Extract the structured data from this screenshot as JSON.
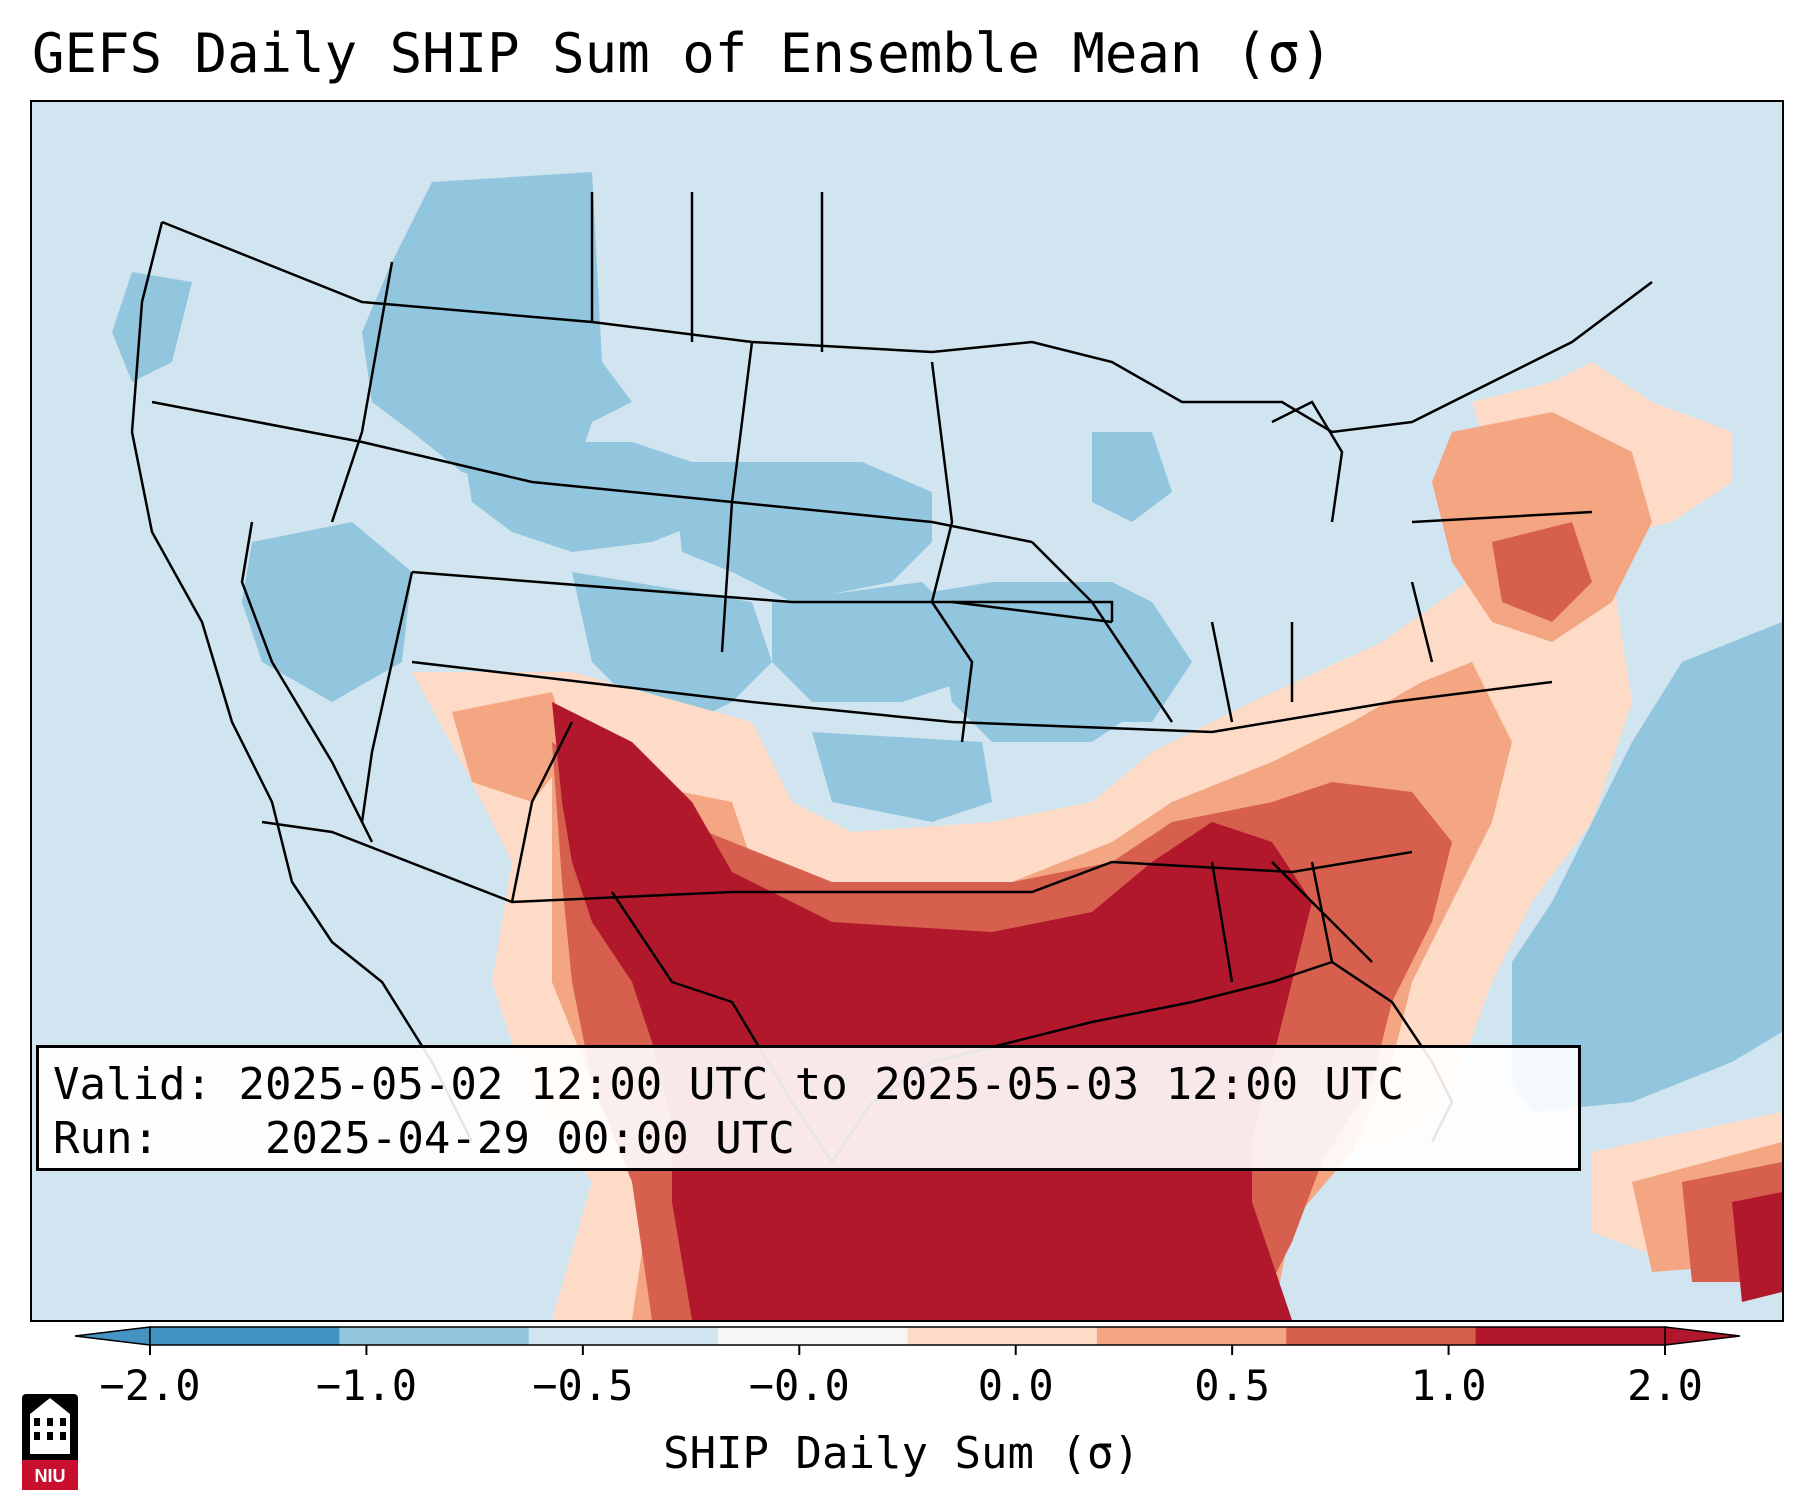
{
  "title": "GEFS Daily SHIP Sum of Ensemble Mean (σ)",
  "info": {
    "valid_label": "Valid:",
    "valid_value": "2025-05-02 12:00 UTC to 2025-05-03 12:00 UTC",
    "run_label": "Run:",
    "run_value": "2025-04-29 00:00 UTC"
  },
  "colorbar": {
    "label": "SHIP Daily Sum (σ)",
    "ticks": [
      "−2.0",
      "−1.0",
      "−0.5",
      "−0.0",
      "0.0",
      "0.5",
      "1.0",
      "2.0"
    ],
    "colors": [
      "#4393c3",
      "#92c5de",
      "#d1e5f0",
      "#f7f7f7",
      "#fddbc7",
      "#f4a582",
      "#d6604d",
      "#b2182b"
    ],
    "extend": "both"
  },
  "logo_text": "NIU",
  "map": {
    "region": "CONUS",
    "legend_colors": {
      "strong_negative": "#4393c3",
      "negative": "#92c5de",
      "weak_negative": "#d1e5f0",
      "weak_positive": "#fddbc7",
      "positive": "#f4a582",
      "strong_positive": "#d6604d",
      "extreme_positive": "#b2182b"
    }
  }
}
